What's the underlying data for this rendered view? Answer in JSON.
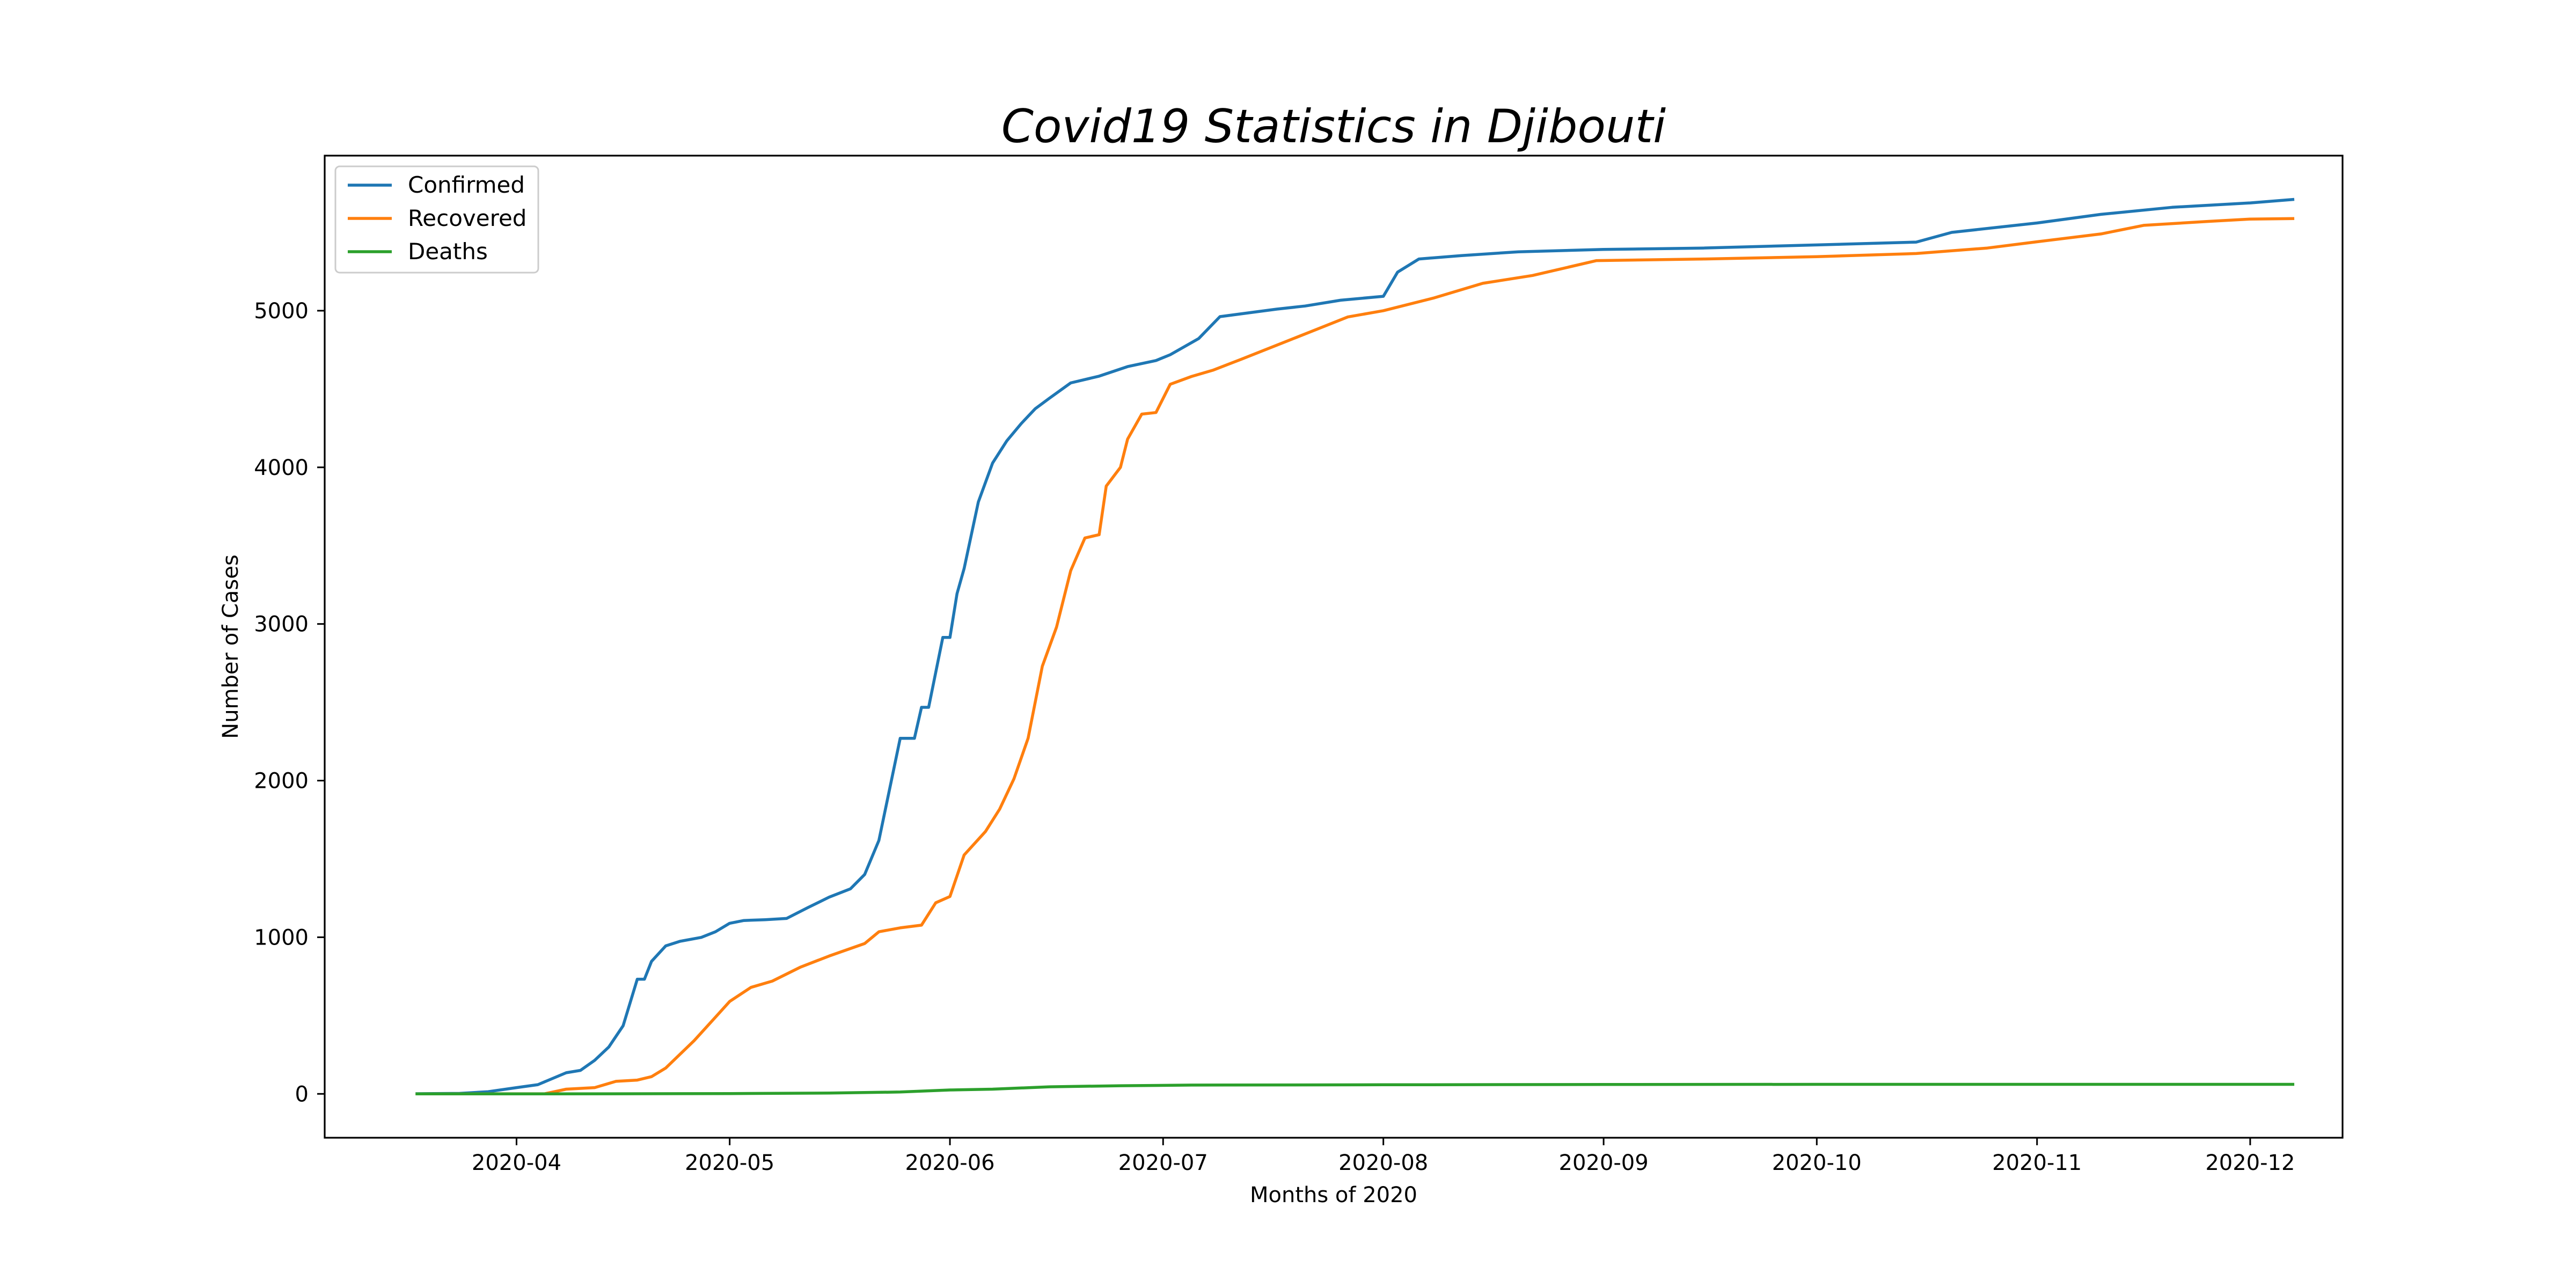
{
  "chart_data": {
    "type": "line",
    "title": "Covid19 Statistics in Djibouti",
    "xlabel": "Months of 2020",
    "ylabel": "Number of Cases",
    "x_type": "date",
    "xlim": [
      "2020-03-05",
      "2020-12-14"
    ],
    "ylim": [
      -280,
      5990
    ],
    "x_ticks": [
      "2020-04-01",
      "2020-05-01",
      "2020-06-01",
      "2020-07-01",
      "2020-08-01",
      "2020-09-01",
      "2020-10-01",
      "2020-11-01",
      "2020-12-01"
    ],
    "x_tick_labels": [
      "2020-04",
      "2020-05",
      "2020-06",
      "2020-07",
      "2020-08",
      "2020-09",
      "2020-10",
      "2020-11",
      "2020-12"
    ],
    "y_ticks": [
      0,
      1000,
      2000,
      3000,
      4000,
      5000
    ],
    "y_tick_labels": [
      "0",
      "1000",
      "2000",
      "3000",
      "4000",
      "5000"
    ],
    "grid": false,
    "legend_position": "top-left",
    "series": [
      {
        "name": "Confirmed",
        "color": "#1f77b4",
        "points": [
          [
            "2020-03-18",
            1
          ],
          [
            "2020-03-24",
            3
          ],
          [
            "2020-03-28",
            14
          ],
          [
            "2020-04-01",
            40
          ],
          [
            "2020-04-04",
            59
          ],
          [
            "2020-04-08",
            135
          ],
          [
            "2020-04-10",
            150
          ],
          [
            "2020-04-12",
            214
          ],
          [
            "2020-04-14",
            300
          ],
          [
            "2020-04-16",
            435
          ],
          [
            "2020-04-18",
            732
          ],
          [
            "2020-04-19",
            732
          ],
          [
            "2020-04-20",
            846
          ],
          [
            "2020-04-22",
            945
          ],
          [
            "2020-04-24",
            974
          ],
          [
            "2020-04-27",
            999
          ],
          [
            "2020-04-29",
            1035
          ],
          [
            "2020-05-01",
            1089
          ],
          [
            "2020-05-03",
            1107
          ],
          [
            "2020-05-06",
            1112
          ],
          [
            "2020-05-09",
            1120
          ],
          [
            "2020-05-12",
            1189
          ],
          [
            "2020-05-15",
            1256
          ],
          [
            "2020-05-18",
            1309
          ],
          [
            "2020-05-20",
            1401
          ],
          [
            "2020-05-22",
            1618
          ],
          [
            "2020-05-25",
            2270
          ],
          [
            "2020-05-27",
            2270
          ],
          [
            "2020-05-28",
            2468
          ],
          [
            "2020-05-29",
            2468
          ],
          [
            "2020-05-31",
            2914
          ],
          [
            "2020-06-01",
            2914
          ],
          [
            "2020-06-02",
            3194
          ],
          [
            "2020-06-03",
            3354
          ],
          [
            "2020-06-05",
            3779
          ],
          [
            "2020-06-07",
            4027
          ],
          [
            "2020-06-09",
            4169
          ],
          [
            "2020-06-11",
            4278
          ],
          [
            "2020-06-13",
            4374
          ],
          [
            "2020-06-15",
            4441
          ],
          [
            "2020-06-18",
            4539
          ],
          [
            "2020-06-22",
            4582
          ],
          [
            "2020-06-26",
            4643
          ],
          [
            "2020-06-30",
            4682
          ],
          [
            "2020-07-02",
            4719
          ],
          [
            "2020-07-06",
            4822
          ],
          [
            "2020-07-09",
            4962
          ],
          [
            "2020-07-13",
            4986
          ],
          [
            "2020-07-17",
            5010
          ],
          [
            "2020-07-21",
            5030
          ],
          [
            "2020-07-26",
            5067
          ],
          [
            "2020-08-01",
            5092
          ],
          [
            "2020-08-03",
            5246
          ],
          [
            "2020-08-06",
            5330
          ],
          [
            "2020-08-12",
            5352
          ],
          [
            "2020-08-20",
            5376
          ],
          [
            "2020-09-01",
            5391
          ],
          [
            "2020-09-15",
            5400
          ],
          [
            "2020-10-01",
            5420
          ],
          [
            "2020-10-15",
            5438
          ],
          [
            "2020-10-20",
            5500
          ],
          [
            "2020-11-01",
            5560
          ],
          [
            "2020-11-10",
            5615
          ],
          [
            "2020-11-20",
            5660
          ],
          [
            "2020-12-01",
            5688
          ],
          [
            "2020-12-07",
            5710
          ]
        ]
      },
      {
        "name": "Recovered",
        "color": "#ff7f0e",
        "points": [
          [
            "2020-03-18",
            0
          ],
          [
            "2020-04-05",
            1
          ],
          [
            "2020-04-08",
            30
          ],
          [
            "2020-04-12",
            40
          ],
          [
            "2020-04-15",
            80
          ],
          [
            "2020-04-18",
            88
          ],
          [
            "2020-04-20",
            110
          ],
          [
            "2020-04-22",
            165
          ],
          [
            "2020-04-26",
            340
          ],
          [
            "2020-04-29",
            490
          ],
          [
            "2020-05-01",
            590
          ],
          [
            "2020-05-04",
            680
          ],
          [
            "2020-05-07",
            720
          ],
          [
            "2020-05-11",
            810
          ],
          [
            "2020-05-15",
            880
          ],
          [
            "2020-05-20",
            960
          ],
          [
            "2020-05-22",
            1035
          ],
          [
            "2020-05-25",
            1060
          ],
          [
            "2020-05-28",
            1077
          ],
          [
            "2020-05-30",
            1220
          ],
          [
            "2020-06-01",
            1260
          ],
          [
            "2020-06-03",
            1525
          ],
          [
            "2020-06-06",
            1675
          ],
          [
            "2020-06-08",
            1818
          ],
          [
            "2020-06-10",
            2010
          ],
          [
            "2020-06-12",
            2270
          ],
          [
            "2020-06-14",
            2730
          ],
          [
            "2020-06-16",
            2980
          ],
          [
            "2020-06-18",
            3340
          ],
          [
            "2020-06-20",
            3549
          ],
          [
            "2020-06-22",
            3570
          ],
          [
            "2020-06-23",
            3880
          ],
          [
            "2020-06-25",
            4000
          ],
          [
            "2020-06-26",
            4180
          ],
          [
            "2020-06-28",
            4340
          ],
          [
            "2020-06-30",
            4350
          ],
          [
            "2020-07-02",
            4530
          ],
          [
            "2020-07-05",
            4580
          ],
          [
            "2020-07-08",
            4620
          ],
          [
            "2020-07-12",
            4690
          ],
          [
            "2020-07-17",
            4780
          ],
          [
            "2020-07-22",
            4870
          ],
          [
            "2020-07-27",
            4960
          ],
          [
            "2020-08-01",
            5000
          ],
          [
            "2020-08-08",
            5080
          ],
          [
            "2020-08-15",
            5175
          ],
          [
            "2020-08-22",
            5225
          ],
          [
            "2020-08-31",
            5320
          ],
          [
            "2020-09-15",
            5330
          ],
          [
            "2020-10-01",
            5345
          ],
          [
            "2020-10-15",
            5365
          ],
          [
            "2020-10-25",
            5400
          ],
          [
            "2020-11-01",
            5440
          ],
          [
            "2020-11-10",
            5490
          ],
          [
            "2020-11-16",
            5545
          ],
          [
            "2020-11-25",
            5570
          ],
          [
            "2020-12-01",
            5585
          ],
          [
            "2020-12-07",
            5588
          ]
        ]
      },
      {
        "name": "Deaths",
        "color": "#2ca02c",
        "points": [
          [
            "2020-03-18",
            0
          ],
          [
            "2020-04-05",
            0
          ],
          [
            "2020-05-01",
            2
          ],
          [
            "2020-05-15",
            5
          ],
          [
            "2020-05-25",
            12
          ],
          [
            "2020-06-01",
            25
          ],
          [
            "2020-06-07",
            30
          ],
          [
            "2020-06-15",
            45
          ],
          [
            "2020-06-25",
            52
          ],
          [
            "2020-07-05",
            56
          ],
          [
            "2020-08-01",
            58
          ],
          [
            "2020-09-01",
            60
          ],
          [
            "2020-10-01",
            61
          ],
          [
            "2020-11-01",
            61
          ],
          [
            "2020-12-07",
            61
          ]
        ]
      }
    ]
  }
}
